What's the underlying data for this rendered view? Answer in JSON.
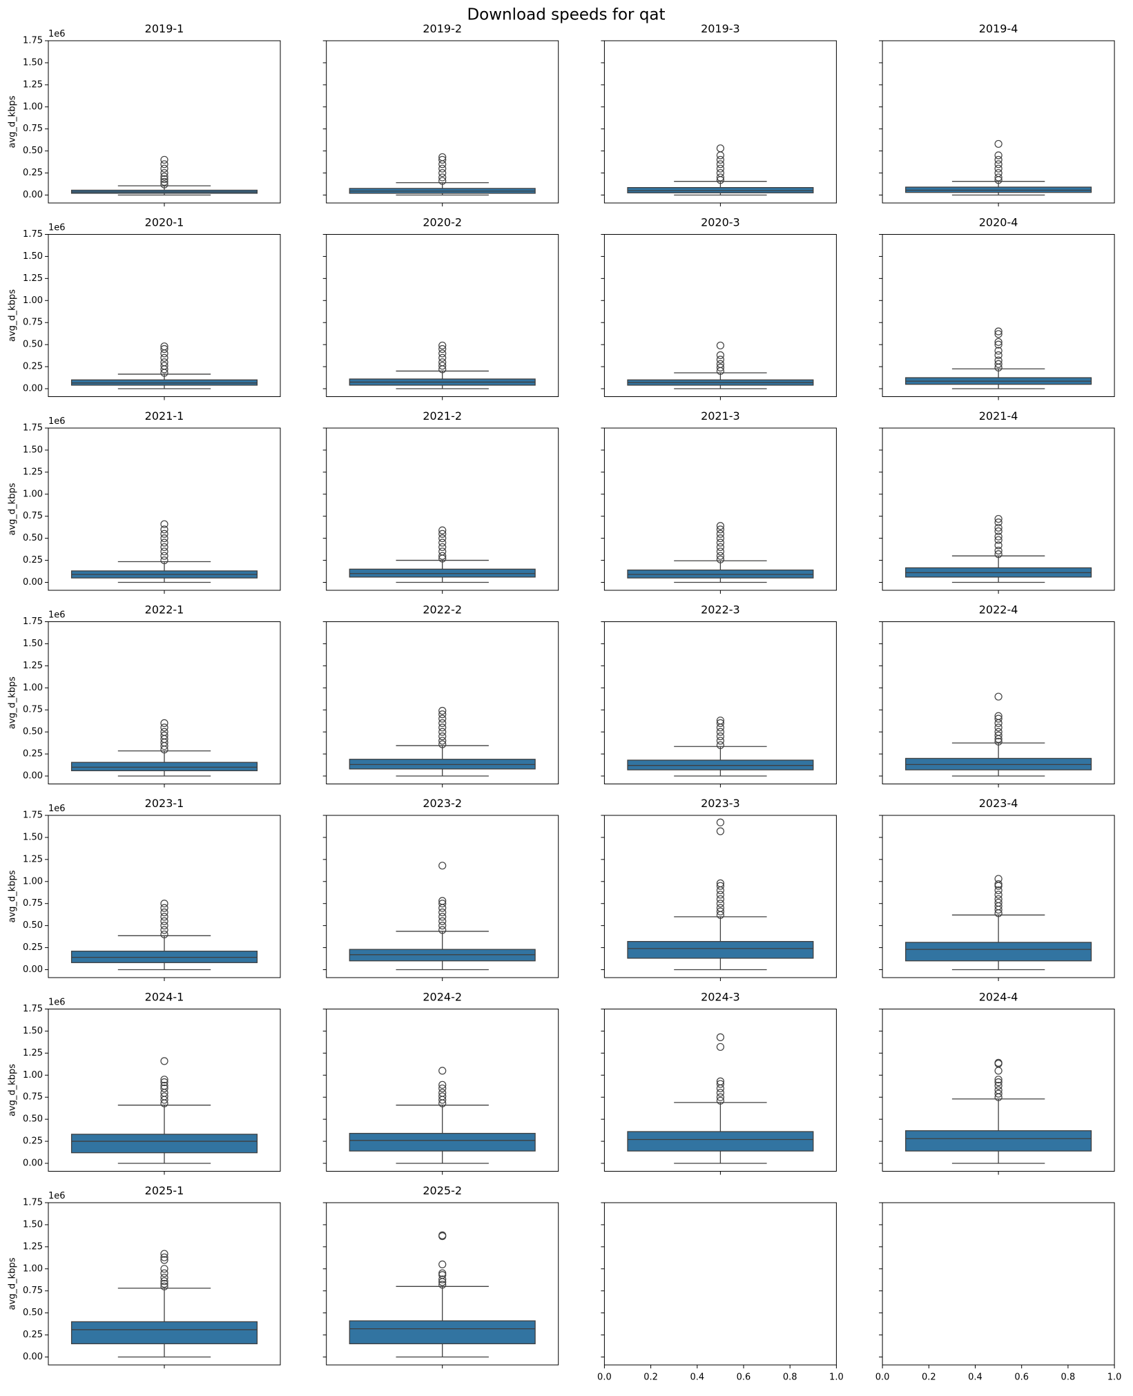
{
  "title": "Download speeds for qat",
  "chart_data": [
    {
      "type": "box",
      "title": "2019-1",
      "ylabel": "avg_d_kbps",
      "offset_label": "1e6",
      "ylim": [
        -0.09,
        1.75
      ],
      "yticks": [
        {
          "value": 0,
          "label": "0.00"
        },
        0.25,
        {
          "value": 0.5,
          "label": "0.50"
        },
        0.75,
        {
          "value": 1,
          "label": "1.00"
        },
        1.25,
        {
          "value": 1.5,
          "label": "1.50"
        },
        1.75
      ],
      "ytick_labels": true,
      "color": "#3274a1",
      "stats": {
        "whislo": 0.0,
        "q1": 0.02,
        "med": 0.035,
        "q3": 0.055,
        "whishi": 0.105,
        "fliers": [
          0.12,
          0.15,
          0.18,
          0.21,
          0.25,
          0.3,
          0.35,
          0.4
        ]
      }
    },
    {
      "type": "box",
      "title": "2019-2",
      "ylim": [
        -0.09,
        1.75
      ],
      "yticks": [
        0,
        0.25,
        0.5,
        0.75,
        1,
        1.25,
        1.5,
        1.75
      ],
      "ytick_labels": false,
      "color": "#3274a1",
      "stats": {
        "whislo": 0.0,
        "q1": 0.02,
        "med": 0.045,
        "q3": 0.075,
        "whishi": 0.14,
        "fliers": [
          0.16,
          0.2,
          0.25,
          0.3,
          0.35,
          0.4,
          0.43
        ]
      }
    },
    {
      "type": "box",
      "title": "2019-3",
      "ylim": [
        -0.09,
        1.75
      ],
      "yticks": [
        0,
        0.25,
        0.5,
        0.75,
        1,
        1.25,
        1.5,
        1.75
      ],
      "ytick_labels": false,
      "color": "#3274a1",
      "stats": {
        "whislo": 0.0,
        "q1": 0.025,
        "med": 0.05,
        "q3": 0.085,
        "whishi": 0.155,
        "fliers": [
          0.17,
          0.2,
          0.25,
          0.3,
          0.35,
          0.4,
          0.45,
          0.53
        ]
      }
    },
    {
      "type": "box",
      "title": "2019-4",
      "ylim": [
        -0.09,
        1.75
      ],
      "yticks": [
        0,
        0.25,
        0.5,
        0.75,
        1,
        1.25,
        1.5,
        1.75
      ],
      "ytick_labels": false,
      "color": "#3274a1",
      "stats": {
        "whislo": 0.0,
        "q1": 0.03,
        "med": 0.055,
        "q3": 0.09,
        "whishi": 0.155,
        "fliers": [
          0.17,
          0.2,
          0.25,
          0.3,
          0.35,
          0.4,
          0.45,
          0.58
        ]
      }
    },
    {
      "type": "box",
      "title": "2020-1",
      "ylabel": "avg_d_kbps",
      "offset_label": "1e6",
      "ylim": [
        -0.09,
        1.75
      ],
      "yticks": [
        {
          "value": 0,
          "label": "0.00"
        },
        0.25,
        {
          "value": 0.5,
          "label": "0.50"
        },
        0.75,
        {
          "value": 1,
          "label": "1.00"
        },
        1.25,
        {
          "value": 1.5,
          "label": "1.50"
        },
        1.75
      ],
      "ytick_labels": true,
      "color": "#3274a1",
      "stats": {
        "whislo": 0.0,
        "q1": 0.04,
        "med": 0.065,
        "q3": 0.1,
        "whishi": 0.165,
        "fliers": [
          0.18,
          0.22,
          0.26,
          0.3,
          0.35,
          0.4,
          0.45,
          0.48
        ]
      }
    },
    {
      "type": "box",
      "title": "2020-2",
      "ylim": [
        -0.09,
        1.75
      ],
      "yticks": [
        0,
        0.25,
        0.5,
        0.75,
        1,
        1.25,
        1.5,
        1.75
      ],
      "ytick_labels": false,
      "color": "#3274a1",
      "stats": {
        "whislo": 0.0,
        "q1": 0.04,
        "med": 0.075,
        "q3": 0.11,
        "whishi": 0.2,
        "fliers": [
          0.22,
          0.26,
          0.3,
          0.35,
          0.4,
          0.45,
          0.49
        ]
      }
    },
    {
      "type": "box",
      "title": "2020-3",
      "ylim": [
        -0.09,
        1.75
      ],
      "yticks": [
        0,
        0.25,
        0.5,
        0.75,
        1,
        1.25,
        1.5,
        1.75
      ],
      "ytick_labels": false,
      "color": "#3274a1",
      "stats": {
        "whislo": 0.0,
        "q1": 0.04,
        "med": 0.07,
        "q3": 0.1,
        "whishi": 0.18,
        "fliers": [
          0.2,
          0.24,
          0.28,
          0.33,
          0.38,
          0.49
        ]
      }
    },
    {
      "type": "box",
      "title": "2020-4",
      "ylim": [
        -0.09,
        1.75
      ],
      "yticks": [
        0,
        0.25,
        0.5,
        0.75,
        1,
        1.25,
        1.5,
        1.75
      ],
      "ytick_labels": false,
      "color": "#3274a1",
      "stats": {
        "whislo": 0.0,
        "q1": 0.05,
        "med": 0.085,
        "q3": 0.125,
        "whishi": 0.225,
        "fliers": [
          0.24,
          0.28,
          0.32,
          0.38,
          0.43,
          0.5,
          0.53,
          0.62,
          0.65
        ]
      }
    },
    {
      "type": "box",
      "title": "2021-1",
      "ylabel": "avg_d_kbps",
      "offset_label": "1e6",
      "ylim": [
        -0.09,
        1.75
      ],
      "yticks": [
        {
          "value": 0,
          "label": "0.00"
        },
        0.25,
        {
          "value": 0.5,
          "label": "0.50"
        },
        0.75,
        {
          "value": 1,
          "label": "1.00"
        },
        1.25,
        {
          "value": 1.5,
          "label": "1.50"
        },
        1.75
      ],
      "ytick_labels": true,
      "color": "#3274a1",
      "stats": {
        "whislo": 0.0,
        "q1": 0.05,
        "med": 0.09,
        "q3": 0.13,
        "whishi": 0.235,
        "fliers": [
          0.25,
          0.3,
          0.35,
          0.4,
          0.45,
          0.5,
          0.55,
          0.6,
          0.66
        ]
      }
    },
    {
      "type": "box",
      "title": "2021-2",
      "ylim": [
        -0.09,
        1.75
      ],
      "yticks": [
        0,
        0.25,
        0.5,
        0.75,
        1,
        1.25,
        1.5,
        1.75
      ],
      "ytick_labels": false,
      "color": "#3274a1",
      "stats": {
        "whislo": 0.0,
        "q1": 0.06,
        "med": 0.1,
        "q3": 0.15,
        "whishi": 0.25,
        "fliers": [
          0.27,
          0.3,
          0.35,
          0.4,
          0.45,
          0.5,
          0.55,
          0.59
        ]
      }
    },
    {
      "type": "box",
      "title": "2021-3",
      "ylim": [
        -0.09,
        1.75
      ],
      "yticks": [
        0,
        0.25,
        0.5,
        0.75,
        1,
        1.25,
        1.5,
        1.75
      ],
      "ytick_labels": false,
      "color": "#3274a1",
      "stats": {
        "whislo": 0.0,
        "q1": 0.05,
        "med": 0.09,
        "q3": 0.14,
        "whishi": 0.245,
        "fliers": [
          0.26,
          0.3,
          0.35,
          0.4,
          0.45,
          0.5,
          0.55,
          0.6,
          0.64
        ]
      }
    },
    {
      "type": "box",
      "title": "2021-4",
      "ylim": [
        -0.09,
        1.75
      ],
      "yticks": [
        0,
        0.25,
        0.5,
        0.75,
        1,
        1.25,
        1.5,
        1.75
      ],
      "ytick_labels": false,
      "color": "#3274a1",
      "stats": {
        "whislo": 0.0,
        "q1": 0.06,
        "med": 0.11,
        "q3": 0.165,
        "whishi": 0.3,
        "fliers": [
          0.32,
          0.36,
          0.42,
          0.48,
          0.52,
          0.58,
          0.62,
          0.68,
          0.72
        ]
      }
    },
    {
      "type": "box",
      "title": "2022-1",
      "ylabel": "avg_d_kbps",
      "offset_label": "1e6",
      "ylim": [
        -0.09,
        1.75
      ],
      "yticks": [
        {
          "value": 0,
          "label": "0.00"
        },
        0.25,
        {
          "value": 0.5,
          "label": "0.50"
        },
        0.75,
        {
          "value": 1,
          "label": "1.00"
        },
        1.25,
        {
          "value": 1.5,
          "label": "1.50"
        },
        1.75
      ],
      "ytick_labels": true,
      "color": "#3274a1",
      "stats": {
        "whislo": 0.0,
        "q1": 0.06,
        "med": 0.1,
        "q3": 0.155,
        "whishi": 0.285,
        "fliers": [
          0.3,
          0.34,
          0.38,
          0.42,
          0.46,
          0.5,
          0.55,
          0.6
        ]
      }
    },
    {
      "type": "box",
      "title": "2022-2",
      "ylim": [
        -0.09,
        1.75
      ],
      "yticks": [
        0,
        0.25,
        0.5,
        0.75,
        1,
        1.25,
        1.5,
        1.75
      ],
      "ytick_labels": false,
      "color": "#3274a1",
      "stats": {
        "whislo": 0.0,
        "q1": 0.08,
        "med": 0.13,
        "q3": 0.19,
        "whishi": 0.345,
        "fliers": [
          0.36,
          0.4,
          0.45,
          0.5,
          0.55,
          0.6,
          0.65,
          0.7,
          0.74
        ]
      }
    },
    {
      "type": "box",
      "title": "2022-3",
      "ylim": [
        -0.09,
        1.75
      ],
      "yticks": [
        0,
        0.25,
        0.5,
        0.75,
        1,
        1.25,
        1.5,
        1.75
      ],
      "ytick_labels": false,
      "color": "#3274a1",
      "stats": {
        "whislo": 0.0,
        "q1": 0.07,
        "med": 0.12,
        "q3": 0.18,
        "whishi": 0.335,
        "fliers": [
          0.35,
          0.4,
          0.45,
          0.5,
          0.55,
          0.6,
          0.63
        ]
      }
    },
    {
      "type": "box",
      "title": "2022-4",
      "ylim": [
        -0.09,
        1.75
      ],
      "yticks": [
        0,
        0.25,
        0.5,
        0.75,
        1,
        1.25,
        1.5,
        1.75
      ],
      "ytick_labels": false,
      "color": "#3274a1",
      "stats": {
        "whislo": 0.0,
        "q1": 0.07,
        "med": 0.13,
        "q3": 0.2,
        "whishi": 0.375,
        "fliers": [
          0.39,
          0.42,
          0.46,
          0.5,
          0.55,
          0.6,
          0.65,
          0.68,
          0.9
        ]
      }
    },
    {
      "type": "box",
      "title": "2023-1",
      "ylabel": "avg_d_kbps",
      "offset_label": "1e6",
      "ylim": [
        -0.09,
        1.75
      ],
      "yticks": [
        {
          "value": 0,
          "label": "0.00"
        },
        0.25,
        {
          "value": 0.5,
          "label": "0.50"
        },
        0.75,
        {
          "value": 1,
          "label": "1.00"
        },
        1.25,
        {
          "value": 1.5,
          "label": "1.50"
        },
        1.75
      ],
      "ytick_labels": true,
      "color": "#3274a1",
      "stats": {
        "whislo": 0.0,
        "q1": 0.08,
        "med": 0.14,
        "q3": 0.21,
        "whishi": 0.385,
        "fliers": [
          0.4,
          0.45,
          0.5,
          0.55,
          0.6,
          0.65,
          0.7,
          0.75
        ]
      }
    },
    {
      "type": "box",
      "title": "2023-2",
      "ylim": [
        -0.09,
        1.75
      ],
      "yticks": [
        0,
        0.25,
        0.5,
        0.75,
        1,
        1.25,
        1.5,
        1.75
      ],
      "ytick_labels": false,
      "color": "#3274a1",
      "stats": {
        "whislo": 0.0,
        "q1": 0.1,
        "med": 0.17,
        "q3": 0.23,
        "whishi": 0.435,
        "fliers": [
          0.45,
          0.5,
          0.55,
          0.6,
          0.65,
          0.7,
          0.75,
          0.78,
          1.18
        ]
      }
    },
    {
      "type": "box",
      "title": "2023-3",
      "ylim": [
        -0.09,
        1.75
      ],
      "yticks": [
        0,
        0.25,
        0.5,
        0.75,
        1,
        1.25,
        1.5,
        1.75
      ],
      "ytick_labels": false,
      "color": "#3274a1",
      "stats": {
        "whislo": 0.0,
        "q1": 0.13,
        "med": 0.24,
        "q3": 0.32,
        "whishi": 0.6,
        "fliers": [
          0.62,
          0.66,
          0.7,
          0.75,
          0.8,
          0.85,
          0.9,
          0.95,
          0.98,
          1.57,
          1.67
        ]
      }
    },
    {
      "type": "box",
      "title": "2023-4",
      "ylim": [
        -0.09,
        1.75
      ],
      "yticks": [
        0,
        0.25,
        0.5,
        0.75,
        1,
        1.25,
        1.5,
        1.75
      ],
      "ytick_labels": false,
      "color": "#3274a1",
      "stats": {
        "whislo": 0.0,
        "q1": 0.1,
        "med": 0.23,
        "q3": 0.31,
        "whishi": 0.62,
        "fliers": [
          0.64,
          0.68,
          0.72,
          0.76,
          0.8,
          0.85,
          0.9,
          0.95,
          0.97,
          1.03
        ]
      }
    },
    {
      "type": "box",
      "title": "2024-1",
      "ylabel": "avg_d_kbps",
      "offset_label": "1e6",
      "ylim": [
        -0.09,
        1.75
      ],
      "yticks": [
        {
          "value": 0,
          "label": "0.00"
        },
        0.25,
        {
          "value": 0.5,
          "label": "0.50"
        },
        0.75,
        {
          "value": 1,
          "label": "1.00"
        },
        1.25,
        {
          "value": 1.5,
          "label": "1.50"
        },
        1.75
      ],
      "ytick_labels": true,
      "color": "#3274a1",
      "stats": {
        "whislo": 0.0,
        "q1": 0.12,
        "med": 0.25,
        "q3": 0.33,
        "whishi": 0.66,
        "fliers": [
          0.68,
          0.72,
          0.76,
          0.8,
          0.85,
          0.88,
          0.92,
          0.95,
          1.16
        ]
      }
    },
    {
      "type": "box",
      "title": "2024-2",
      "ylim": [
        -0.09,
        1.75
      ],
      "yticks": [
        0,
        0.25,
        0.5,
        0.75,
        1,
        1.25,
        1.5,
        1.75
      ],
      "ytick_labels": false,
      "color": "#3274a1",
      "stats": {
        "whislo": 0.0,
        "q1": 0.14,
        "med": 0.26,
        "q3": 0.34,
        "whishi": 0.66,
        "fliers": [
          0.68,
          0.72,
          0.76,
          0.8,
          0.85,
          0.89,
          1.05
        ]
      }
    },
    {
      "type": "box",
      "title": "2024-3",
      "ylim": [
        -0.09,
        1.75
      ],
      "yticks": [
        0,
        0.25,
        0.5,
        0.75,
        1,
        1.25,
        1.5,
        1.75
      ],
      "ytick_labels": false,
      "color": "#3274a1",
      "stats": {
        "whislo": 0.0,
        "q1": 0.14,
        "med": 0.27,
        "q3": 0.36,
        "whishi": 0.69,
        "fliers": [
          0.71,
          0.75,
          0.8,
          0.85,
          0.9,
          0.93,
          1.32,
          1.43
        ]
      }
    },
    {
      "type": "box",
      "title": "2024-4",
      "ylim": [
        -0.09,
        1.75
      ],
      "yticks": [
        0,
        0.25,
        0.5,
        0.75,
        1,
        1.25,
        1.5,
        1.75
      ],
      "ytick_labels": false,
      "color": "#3274a1",
      "stats": {
        "whislo": 0.0,
        "q1": 0.14,
        "med": 0.28,
        "q3": 0.37,
        "whishi": 0.73,
        "fliers": [
          0.75,
          0.79,
          0.83,
          0.88,
          0.92,
          0.95,
          1.05,
          1.13,
          1.14
        ]
      }
    },
    {
      "type": "box",
      "title": "2025-1",
      "ylabel": "avg_d_kbps",
      "offset_label": "1e6",
      "ylim": [
        -0.09,
        1.75
      ],
      "yticks": [
        {
          "value": 0,
          "label": "0.00"
        },
        0.25,
        {
          "value": 0.5,
          "label": "0.50"
        },
        0.75,
        {
          "value": 1,
          "label": "1.00"
        },
        1.25,
        {
          "value": 1.5,
          "label": "1.50"
        },
        1.75
      ],
      "ytick_labels": true,
      "color": "#3274a1",
      "stats": {
        "whislo": 0.0,
        "q1": 0.15,
        "med": 0.31,
        "q3": 0.4,
        "whishi": 0.78,
        "fliers": [
          0.8,
          0.83,
          0.86,
          0.9,
          0.95,
          1.0,
          1.1,
          1.13,
          1.17
        ]
      }
    },
    {
      "type": "box",
      "title": "2025-2",
      "ylim": [
        -0.09,
        1.75
      ],
      "yticks": [
        0,
        0.25,
        0.5,
        0.75,
        1,
        1.25,
        1.5,
        1.75
      ],
      "ytick_labels": false,
      "color": "#3274a1",
      "stats": {
        "whislo": 0.0,
        "q1": 0.15,
        "med": 0.32,
        "q3": 0.41,
        "whishi": 0.8,
        "fliers": [
          0.82,
          0.85,
          0.88,
          0.93,
          0.95,
          1.05,
          1.37,
          1.38
        ]
      }
    },
    {
      "type": "empty",
      "ylim": [
        -0.09,
        1.75
      ],
      "yticks": [
        0,
        0.25,
        0.5,
        0.75,
        1,
        1.25,
        1.5,
        1.75
      ],
      "ytick_labels": false,
      "xlim": [
        0,
        1
      ],
      "xticks": [
        {
          "value": 0,
          "label": "0.0"
        },
        0.2,
        0.4,
        0.6,
        0.8,
        {
          "value": 1,
          "label": "1.0"
        }
      ]
    },
    {
      "type": "empty",
      "ylim": [
        -0.09,
        1.75
      ],
      "yticks": [
        0,
        0.25,
        0.5,
        0.75,
        1,
        1.25,
        1.5,
        1.75
      ],
      "ytick_labels": false,
      "xlim": [
        0,
        1
      ],
      "xticks": [
        {
          "value": 0,
          "label": "0.0"
        },
        0.2,
        0.4,
        0.6,
        0.8,
        {
          "value": 1,
          "label": "1.0"
        }
      ]
    }
  ]
}
